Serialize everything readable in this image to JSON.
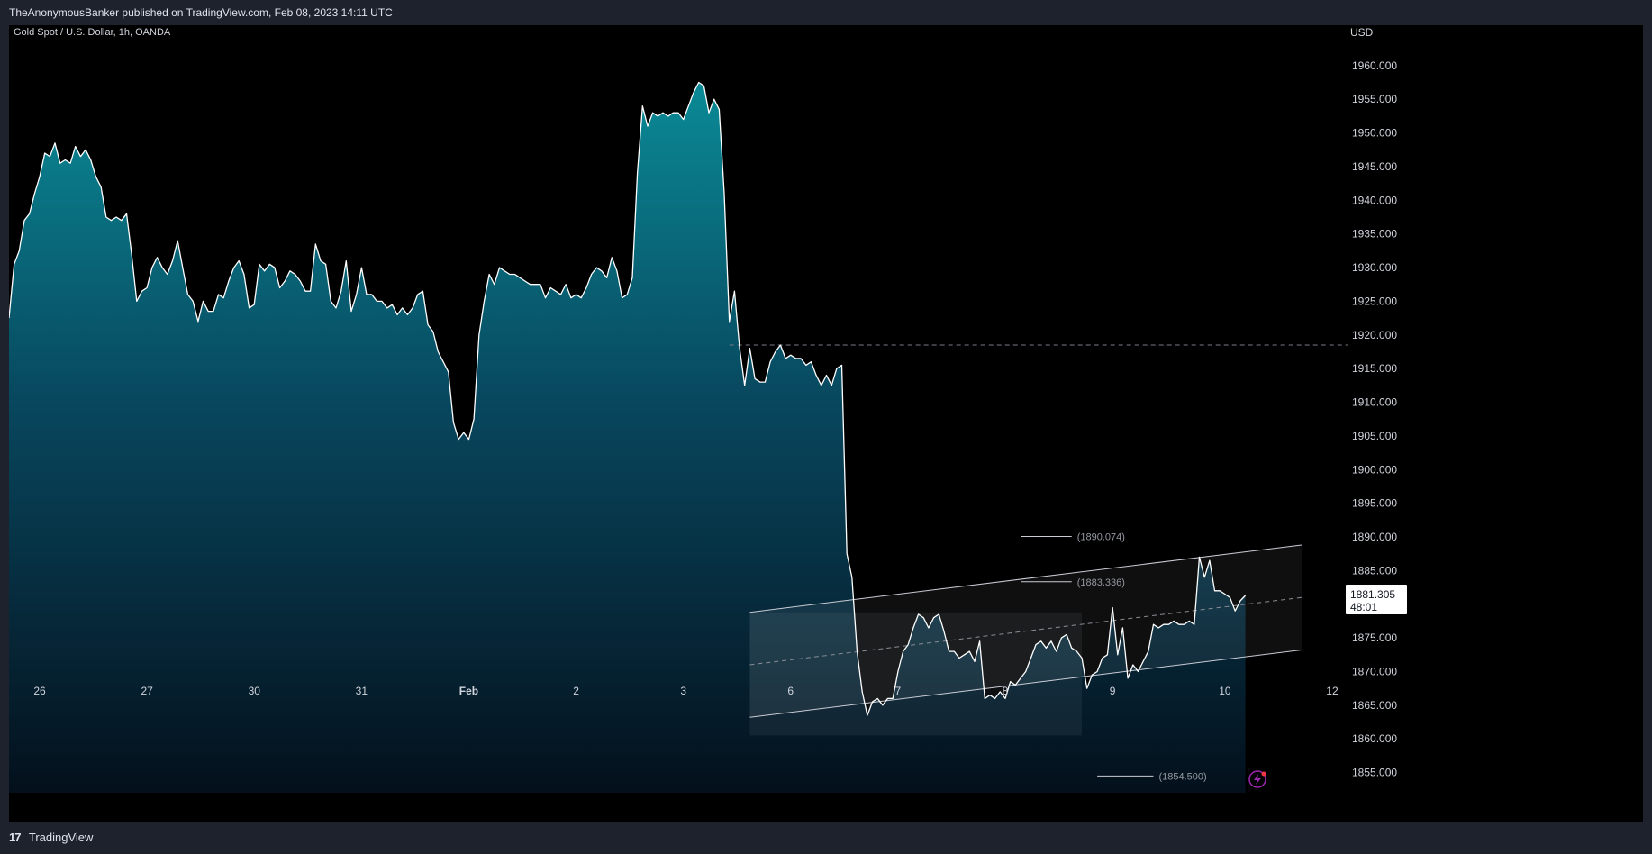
{
  "header": {
    "publish_line": "TheAnonymousBanker published on TradingView.com, Feb 08, 2023 14:11 UTC"
  },
  "footer": {
    "brand_label": "TradingView"
  },
  "chart_data": {
    "type": "area",
    "title": "Gold Spot / U.S. Dollar, 1h, OANDA",
    "currency_label": "USD",
    "ylim": [
      1852,
      1966
    ],
    "y_ticks": [
      "1960.000",
      "1955.000",
      "1950.000",
      "1945.000",
      "1940.000",
      "1935.000",
      "1930.000",
      "1925.000",
      "1920.000",
      "1915.000",
      "1910.000",
      "1905.000",
      "1900.000",
      "1895.000",
      "1890.000",
      "1885.000",
      "1880.000",
      "1875.000",
      "1870.000",
      "1865.000",
      "1860.000",
      "1855.000"
    ],
    "x_ticks": [
      {
        "label": "26",
        "bar": 6
      },
      {
        "label": "27",
        "bar": 27
      },
      {
        "label": "30",
        "bar": 48
      },
      {
        "label": "31",
        "bar": 69
      },
      {
        "label": "Feb",
        "bar": 90
      },
      {
        "label": "2",
        "bar": 111
      },
      {
        "label": "3",
        "bar": 132
      },
      {
        "label": "6",
        "bar": 153
      },
      {
        "label": "7",
        "bar": 174
      },
      {
        "label": "8",
        "bar": 195
      },
      {
        "label": "9",
        "bar": 216
      },
      {
        "label": "10",
        "bar": 238
      },
      {
        "label": "12",
        "bar": 259
      }
    ],
    "bar_span": [
      0,
      262
    ],
    "series": [
      {
        "values": [
          1922.5,
          1930.5,
          1932.5,
          1937,
          1938,
          1941,
          1943.5,
          1947,
          1946.5,
          1948.5,
          1945.5,
          1946,
          1945.5,
          1948,
          1946.5,
          1947.5,
          1946,
          1943.5,
          1942,
          1937.5,
          1937,
          1937.5,
          1937,
          1938,
          1932,
          1925,
          1926.5,
          1927,
          1930,
          1931.5,
          1930,
          1929,
          1931,
          1934,
          1930,
          1926,
          1925,
          1922,
          1925,
          1923.5,
          1923.5,
          1926,
          1925.5,
          1928,
          1930,
          1931,
          1929,
          1924,
          1924.5,
          1930.5,
          1929.5,
          1930.5,
          1930,
          1927,
          1928,
          1929.5,
          1929,
          1928,
          1926.5,
          1926.5,
          1933.5,
          1931,
          1930.5,
          1925,
          1924,
          1926.5,
          1931,
          1923.5,
          1926,
          1930,
          1926,
          1926,
          1925,
          1925,
          1924,
          1924.5,
          1923,
          1924,
          1923,
          1924,
          1926,
          1926.5,
          1921.5,
          1920.5,
          1917.5,
          1916,
          1914.5,
          1907,
          1904.5,
          1905.5,
          1904.5,
          1907.5,
          1920,
          1925,
          1929,
          1927.5,
          1930,
          1929.5,
          1929,
          1929,
          1928.5,
          1928,
          1927.5,
          1927.5,
          1927.5,
          1925.5,
          1927,
          1926.5,
          1926,
          1927.5,
          1925.5,
          1926,
          1925.5,
          1927,
          1929,
          1930,
          1929.5,
          1928.5,
          1931.5,
          1929.5,
          1925.5,
          1926,
          1928.5,
          1944,
          1954,
          1951,
          1953,
          1952.5,
          1953,
          1952.5,
          1953,
          1953,
          1952,
          1954,
          1956,
          1957.5,
          1957,
          1953,
          1955,
          1953.5,
          1941,
          1922,
          1926.5,
          1918,
          1912.5,
          1918,
          1913.5,
          1913,
          1913,
          1916,
          1917.5,
          1918.5,
          1916.5,
          1917,
          1916.5,
          1916.5,
          1915.5,
          1916,
          1914,
          1912.5,
          1914,
          1912.5,
          1915,
          1915.5,
          1887.5,
          1884,
          1873,
          1867,
          1863.5,
          1865.5,
          1866,
          1865,
          1866,
          1866,
          1870,
          1873,
          1874,
          1876.5,
          1878.5,
          1878,
          1876.5,
          1878,
          1878.5,
          1876,
          1873,
          1873,
          1872,
          1872.5,
          1873,
          1871.5,
          1874.5,
          1866,
          1866.5,
          1866,
          1867,
          1866,
          1868.5,
          1868,
          1869,
          1870,
          1872,
          1874,
          1874.5,
          1873.5,
          1874.5,
          1873,
          1875,
          1875.5,
          1873.5,
          1873,
          1872,
          1867.5,
          1869.5,
          1870,
          1872,
          1872.5,
          1879.5,
          1872.5,
          1876.5,
          1869,
          1871,
          1870,
          1871.5,
          1873,
          1877,
          1876.5,
          1877,
          1877,
          1877.5,
          1877,
          1877,
          1877.5,
          1877,
          1887,
          1884,
          1886.5,
          1882,
          1882,
          1881.5,
          1881,
          1879,
          1880.5,
          1881.3
        ]
      }
    ],
    "horizontal_line": {
      "value": 1918.5,
      "from_bar": 141
    },
    "channel": {
      "upper": {
        "from": [
          145,
          1878.8
        ],
        "to": [
          253,
          1888.8
        ]
      },
      "middle": {
        "from": [
          145,
          1871
        ],
        "to": [
          253,
          1881
        ]
      },
      "lower": {
        "from": [
          145,
          1863.2
        ],
        "to": [
          253,
          1873.2
        ]
      }
    },
    "highlight_box": {
      "bar_from": 145,
      "bar_to": 210,
      "y_from": 1860.5,
      "y_to": 1878.8
    },
    "price_marks": [
      {
        "label": "(1890.074)",
        "value": 1890.074,
        "bar_from": 198,
        "bar_to": 208
      },
      {
        "label": "(1883.336)",
        "value": 1883.336,
        "bar_from": 198,
        "bar_to": 208
      },
      {
        "label": "(1854.500)",
        "value": 1854.5,
        "bar_from": 213,
        "bar_to": 224
      }
    ],
    "last_price": {
      "value": 1881.305,
      "label": "1881.305",
      "countdown": "48:01"
    }
  }
}
